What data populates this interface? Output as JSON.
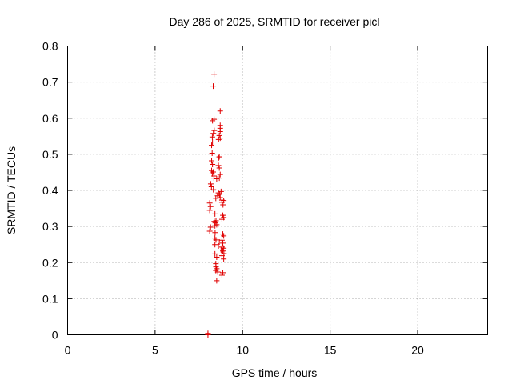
{
  "chart_data": {
    "type": "scatter",
    "title": "Day 286 of 2025, SRMTID for receiver picl",
    "xlabel": "GPS time / hours",
    "ylabel": "SRMTID / TECUs",
    "xlim": [
      0,
      24
    ],
    "ylim": [
      0,
      0.8
    ],
    "x_ticks": [
      0,
      5,
      10,
      15,
      20
    ],
    "y_ticks": [
      0,
      0.1,
      0.2,
      0.3,
      0.4,
      0.5,
      0.6,
      0.7,
      0.8
    ],
    "x_tick_labels": [
      "0",
      "5",
      "10",
      "15",
      "20"
    ],
    "y_tick_labels": [
      "0",
      "0.1",
      "0.2",
      "0.3",
      "0.4",
      "0.5",
      "0.6",
      "0.7",
      "0.8"
    ],
    "grid": true,
    "marker": "+",
    "color": "#e00000",
    "series": [
      {
        "name": "SRMTID",
        "points": [
          [
            8.37,
            0.722
          ],
          [
            8.32,
            0.689
          ],
          [
            8.72,
            0.62
          ],
          [
            8.37,
            0.597
          ],
          [
            8.28,
            0.593
          ],
          [
            8.72,
            0.58
          ],
          [
            8.72,
            0.572
          ],
          [
            8.38,
            0.566
          ],
          [
            8.72,
            0.563
          ],
          [
            8.33,
            0.558
          ],
          [
            8.67,
            0.552
          ],
          [
            8.27,
            0.548
          ],
          [
            8.72,
            0.545
          ],
          [
            8.63,
            0.541
          ],
          [
            8.28,
            0.534
          ],
          [
            8.23,
            0.525
          ],
          [
            8.26,
            0.503
          ],
          [
            8.67,
            0.493
          ],
          [
            8.63,
            0.49
          ],
          [
            8.23,
            0.482
          ],
          [
            8.28,
            0.472
          ],
          [
            8.62,
            0.469
          ],
          [
            8.67,
            0.462
          ],
          [
            8.23,
            0.455
          ],
          [
            8.32,
            0.451
          ],
          [
            8.27,
            0.446
          ],
          [
            8.72,
            0.444
          ],
          [
            8.37,
            0.44
          ],
          [
            8.36,
            0.434
          ],
          [
            8.52,
            0.432
          ],
          [
            8.67,
            0.434
          ],
          [
            8.18,
            0.418
          ],
          [
            8.22,
            0.41
          ],
          [
            8.33,
            0.402
          ],
          [
            8.77,
            0.397
          ],
          [
            8.62,
            0.393
          ],
          [
            8.68,
            0.389
          ],
          [
            8.57,
            0.385
          ],
          [
            8.72,
            0.38
          ],
          [
            8.47,
            0.378
          ],
          [
            8.82,
            0.373
          ],
          [
            8.92,
            0.372
          ],
          [
            8.82,
            0.367
          ],
          [
            8.12,
            0.365
          ],
          [
            8.88,
            0.36
          ],
          [
            8.17,
            0.355
          ],
          [
            8.12,
            0.345
          ],
          [
            8.42,
            0.335
          ],
          [
            8.87,
            0.331
          ],
          [
            8.92,
            0.325
          ],
          [
            8.82,
            0.32
          ],
          [
            8.48,
            0.316
          ],
          [
            8.38,
            0.314
          ],
          [
            8.44,
            0.31
          ],
          [
            8.52,
            0.305
          ],
          [
            8.42,
            0.302
          ],
          [
            8.17,
            0.298
          ],
          [
            8.12,
            0.287
          ],
          [
            8.43,
            0.283
          ],
          [
            8.87,
            0.279
          ],
          [
            8.92,
            0.274
          ],
          [
            8.42,
            0.268
          ],
          [
            8.48,
            0.263
          ],
          [
            8.82,
            0.262
          ],
          [
            8.67,
            0.257
          ],
          [
            8.87,
            0.254
          ],
          [
            8.42,
            0.25
          ],
          [
            8.62,
            0.246
          ],
          [
            8.82,
            0.243
          ],
          [
            8.92,
            0.24
          ],
          [
            8.77,
            0.235
          ],
          [
            8.87,
            0.232
          ],
          [
            8.42,
            0.224
          ],
          [
            8.93,
            0.225
          ],
          [
            8.82,
            0.219
          ],
          [
            8.52,
            0.215
          ],
          [
            8.92,
            0.21
          ],
          [
            8.47,
            0.197
          ],
          [
            8.48,
            0.188
          ],
          [
            8.52,
            0.183
          ],
          [
            8.47,
            0.178
          ],
          [
            8.58,
            0.174
          ],
          [
            8.87,
            0.172
          ],
          [
            8.82,
            0.165
          ],
          [
            8.52,
            0.15
          ],
          [
            8.02,
            0.004
          ],
          [
            8.02,
            0.0
          ]
        ]
      }
    ]
  }
}
